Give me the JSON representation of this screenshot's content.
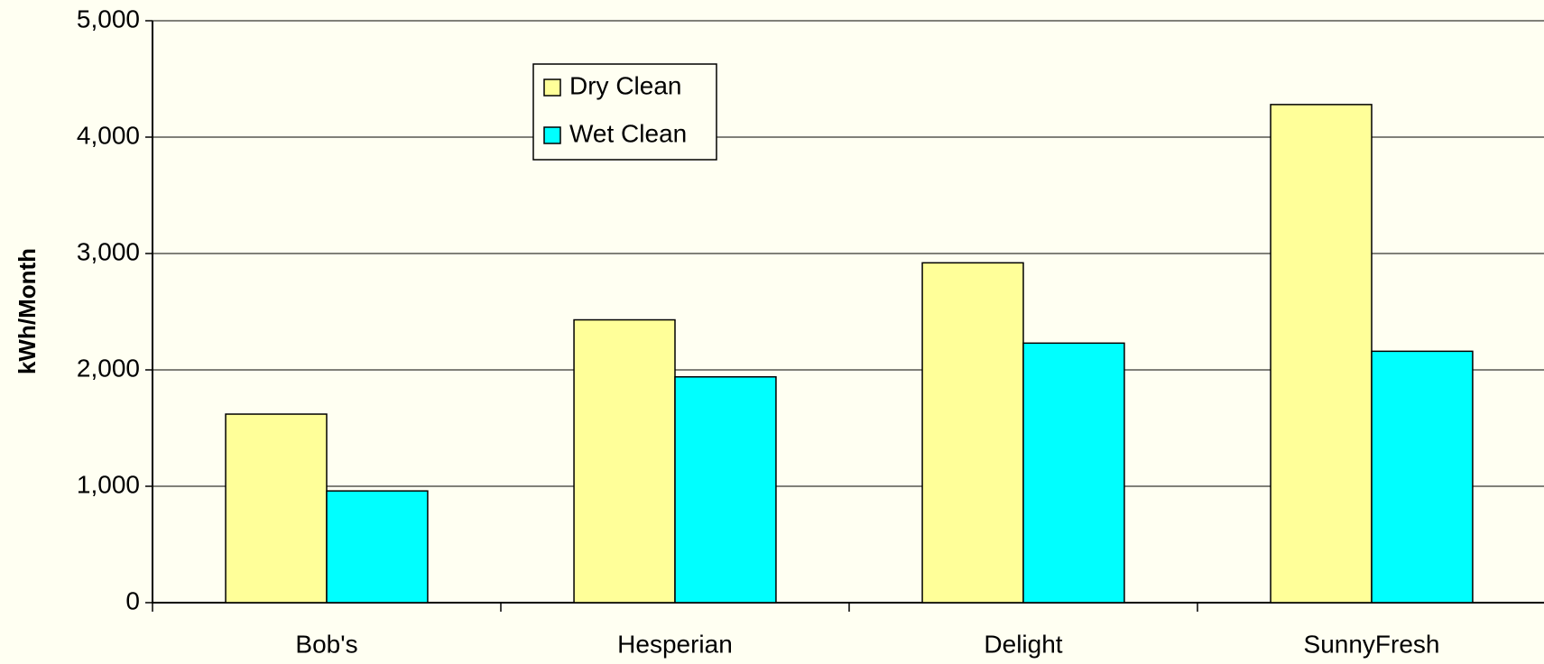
{
  "chart_data": {
    "type": "bar",
    "y_label": "kWh/Month",
    "categories": [
      "Bob's",
      "Hesperian",
      "Delight",
      "SunnyFresh"
    ],
    "series": [
      {
        "name": "Dry Clean",
        "color": "#ffff99",
        "values": [
          1620,
          2430,
          2920,
          4280
        ]
      },
      {
        "name": "Wet Clean",
        "color": "#00ffff",
        "values": [
          960,
          1940,
          2230,
          2160
        ]
      }
    ],
    "ylim": [
      0,
      5000
    ],
    "yticks": [
      0,
      {
        "value": 1000,
        "label": "1,000"
      },
      {
        "value": 2000,
        "label": "2,000"
      },
      {
        "value": 3000,
        "label": "3,000"
      },
      {
        "value": 4000,
        "label": "4,000"
      },
      {
        "value": 5000,
        "label": "5,000"
      }
    ],
    "grid": true,
    "legend": "top-left"
  }
}
